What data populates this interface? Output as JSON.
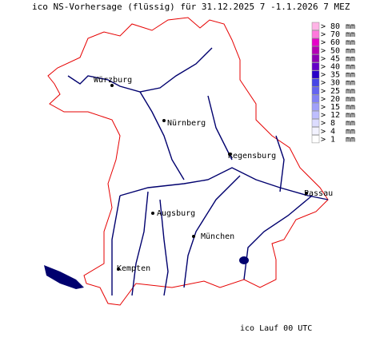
{
  "header": {
    "title": "ico NS-Vorhersage (flüssig) für 31.12.2025 7 -1.1.2026 7 MEZ"
  },
  "legend": [
    {
      "label": "> 80",
      "unit": "mm",
      "color": "#ffb4e6"
    },
    {
      "label": "> 70",
      "unit": "mm",
      "color": "#ff78dc"
    },
    {
      "label": "> 60",
      "unit": "mm",
      "color": "#e600c8"
    },
    {
      "label": "> 50",
      "unit": "mm",
      "color": "#b400b4"
    },
    {
      "label": "> 45",
      "unit": "mm",
      "color": "#8c00b4"
    },
    {
      "label": "> 40",
      "unit": "mm",
      "color": "#6400c8"
    },
    {
      "label": "> 35",
      "unit": "mm",
      "color": "#2800c8"
    },
    {
      "label": "> 30",
      "unit": "mm",
      "color": "#4646e6"
    },
    {
      "label": "> 25",
      "unit": "mm",
      "color": "#6464f0"
    },
    {
      "label": "> 20",
      "unit": "mm",
      "color": "#8282f5"
    },
    {
      "label": "> 15",
      "unit": "mm",
      "color": "#a0a0fa"
    },
    {
      "label": "> 12",
      "unit": "mm",
      "color": "#bebeff"
    },
    {
      "label": ">  8",
      "unit": "mm",
      "color": "#dcdcff"
    },
    {
      "label": ">  4",
      "unit": "mm",
      "color": "#f2f2ff"
    },
    {
      "label": ">  1",
      "unit": "mm",
      "color": "#ffffff"
    }
  ],
  "cities": [
    {
      "name": "Würzburg"
    },
    {
      "name": "Nürnberg"
    },
    {
      "name": "Regensburg"
    },
    {
      "name": "Passau"
    },
    {
      "name": "Augsburg"
    },
    {
      "name": "München"
    },
    {
      "name": "Kempten"
    }
  ],
  "footer": {
    "text": "ico Lauf 00 UTC"
  }
}
